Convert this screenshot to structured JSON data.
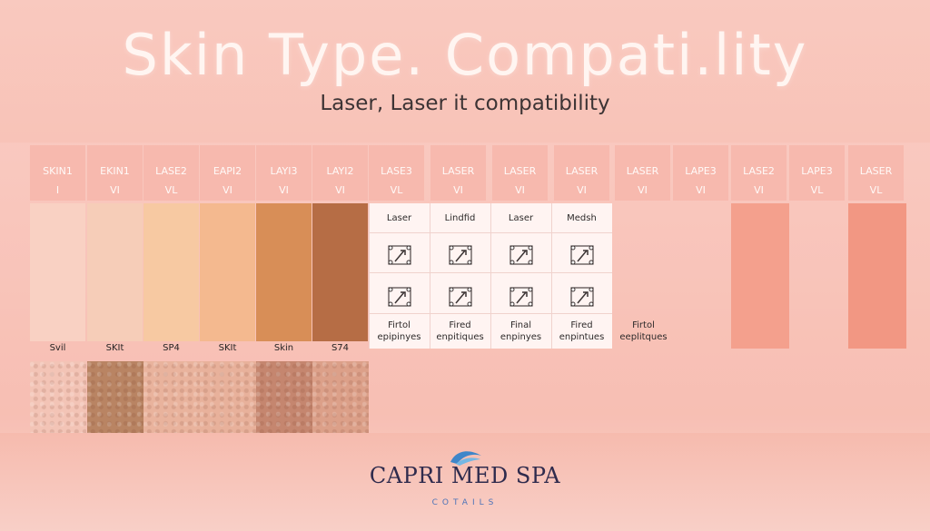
{
  "title": "Skin Type. Compati.lity",
  "subtitle": "Laser, Laser it compatibility",
  "columns": [
    {
      "h1": "SKIN1",
      "h2": "I",
      "color": "#f9d1c3",
      "label": "Svil",
      "texture": "#f3c4b6"
    },
    {
      "h1": "EKIN1",
      "h2": "VI",
      "color": "#f6cdb8",
      "label": "SKIt",
      "texture": "#b98463"
    },
    {
      "h1": "LASE2",
      "h2": "VL",
      "color": "#f7c9a2",
      "label": "SP4",
      "texture": "#e9b39d"
    },
    {
      "h1": "EAPI2",
      "h2": "VI",
      "color": "#f4b98f",
      "label": "SKIt",
      "texture": "#e8b19b"
    },
    {
      "h1": "LAYI3",
      "h2": "VI",
      "color": "#d88e57",
      "label": "Skin",
      "texture": "#c5866f"
    },
    {
      "h1": "LAYI2",
      "h2": "VI",
      "color": "#b66d45",
      "label": "S74",
      "texture": "#dca089"
    },
    {
      "h1": "LASE3",
      "h2": "VL"
    },
    {
      "h1": "LASER",
      "h2": "VI"
    },
    {
      "h1": "LASER",
      "h2": "VI"
    },
    {
      "h1": "LASER",
      "h2": "VI"
    },
    {
      "h1": "LASER",
      "h2": "VI"
    },
    {
      "h1": "LAPE3",
      "h2": "VI"
    },
    {
      "h1": "LASE2",
      "h2": "VI"
    },
    {
      "h1": "LAPE3",
      "h2": "VL"
    },
    {
      "h1": "LASER",
      "h2": "VL"
    }
  ],
  "panel": {
    "top_labels": [
      "Laser",
      "Lindfid",
      "Laser",
      "Medsh"
    ],
    "bottom_labels": [
      [
        "Firtol",
        "epipinyes"
      ],
      [
        "Fired",
        "enpitiques"
      ],
      [
        "Final",
        "enpinyes"
      ],
      [
        "Fired",
        "enpintues"
      ]
    ],
    "extra_label": [
      "Firtol",
      "eeplitques"
    ],
    "icons_row1": [
      "laser-device-icon",
      "handpiece-icon",
      "laser-device-icon",
      "laser-device-icon"
    ],
    "icons_row2": [
      "laser-device-icon",
      "handpiece-icon",
      "laser-device-icon",
      "laser-device-icon"
    ]
  },
  "logo": {
    "name": "CAPRI MED SPA",
    "tagline": "COTAILS"
  },
  "colors": {
    "header_bg": "#f7b9ae",
    "panel_bg": "#fff4f2",
    "logo_text": "#2f2b4d",
    "logo_accent": "#3f86c9"
  }
}
